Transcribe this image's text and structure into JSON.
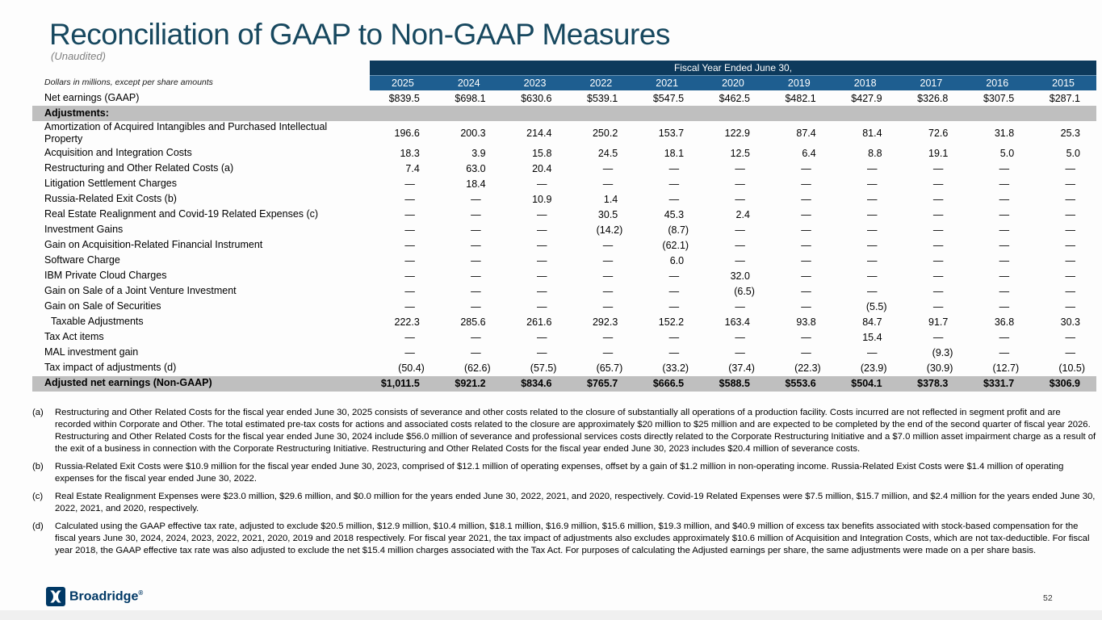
{
  "slide": {
    "title": "Reconciliation of GAAP to Non-GAAP Measures",
    "subtitle": "(Unaudited)",
    "units_note": "Dollars in millions, except per share amounts",
    "page_number": "52",
    "logo_text": "Broadridge",
    "logo_mark": "®"
  },
  "colors": {
    "title_text": "#17485f",
    "banner_navy": "#0d3a5c",
    "year_row_blue": "#1e5e90",
    "gray_band": "#bfbfbf",
    "logo_navy": "#003865"
  },
  "table": {
    "banner": "Fiscal Year Ended June 30,",
    "years": [
      "2025",
      "2024",
      "2023",
      "2022",
      "2021",
      "2020",
      "2019",
      "2018",
      "2017",
      "2016",
      "2015"
    ],
    "rows": [
      {
        "label": "Net earnings (GAAP)",
        "type": "data",
        "values": [
          "$839.5",
          "$698.1",
          "$630.6",
          "$539.1",
          "$547.5",
          "$462.5",
          "$482.1",
          "$427.9",
          "$326.8",
          "$307.5",
          "$287.1"
        ]
      },
      {
        "label": "Adjustments:",
        "type": "section"
      },
      {
        "label": "Amortization of Acquired Intangibles and Purchased Intellectual Property",
        "type": "data",
        "values": [
          "196.6",
          "200.3",
          "214.4",
          "250.2",
          "153.7",
          "122.9",
          "87.4",
          "81.4",
          "72.6",
          "31.8",
          "25.3"
        ]
      },
      {
        "label": "Acquisition and Integration Costs",
        "type": "data",
        "values": [
          "18.3",
          "3.9",
          "15.8",
          "24.5",
          "18.1",
          "12.5",
          "6.4",
          "8.8",
          "19.1",
          "5.0",
          "5.0"
        ]
      },
      {
        "label": "Restructuring and Other Related Costs (a)",
        "type": "data",
        "values": [
          "7.4",
          "63.0",
          "20.4",
          "—",
          "—",
          "—",
          "—",
          "—",
          "—",
          "—",
          "—"
        ]
      },
      {
        "label": "Litigation Settlement Charges",
        "type": "data",
        "values": [
          "—",
          "18.4",
          "—",
          "—",
          "—",
          "—",
          "—",
          "—",
          "—",
          "—",
          "—"
        ]
      },
      {
        "label": "Russia-Related Exit Costs (b)",
        "type": "data",
        "values": [
          "—",
          "—",
          "10.9",
          "1.4",
          "—",
          "—",
          "—",
          "—",
          "—",
          "—",
          "—"
        ]
      },
      {
        "label": "Real Estate Realignment and Covid-19 Related Expenses (c)",
        "type": "data",
        "values": [
          "—",
          "—",
          "—",
          "30.5",
          "45.3",
          "2.4",
          "—",
          "—",
          "—",
          "—",
          "—"
        ]
      },
      {
        "label": "Investment Gains",
        "type": "data",
        "values": [
          "—",
          "—",
          "—",
          "(14.2)",
          "(8.7)",
          "—",
          "—",
          "—",
          "—",
          "—",
          "—"
        ]
      },
      {
        "label": "Gain on Acquisition-Related Financial Instrument",
        "type": "data",
        "values": [
          "—",
          "—",
          "—",
          "—",
          "(62.1)",
          "—",
          "—",
          "—",
          "—",
          "—",
          "—"
        ]
      },
      {
        "label": "Software Charge",
        "type": "data",
        "values": [
          "—",
          "—",
          "—",
          "—",
          "6.0",
          "—",
          "—",
          "—",
          "—",
          "—",
          "—"
        ]
      },
      {
        "label": "IBM Private Cloud Charges",
        "type": "data",
        "values": [
          "—",
          "—",
          "—",
          "—",
          "—",
          "32.0",
          "—",
          "—",
          "—",
          "—",
          "—"
        ]
      },
      {
        "label": "Gain on Sale of a Joint Venture Investment",
        "type": "data",
        "values": [
          "—",
          "—",
          "—",
          "—",
          "—",
          "(6.5)",
          "—",
          "—",
          "—",
          "—",
          "—"
        ]
      },
      {
        "label": "Gain on Sale of Securities",
        "type": "data",
        "values": [
          "—",
          "—",
          "—",
          "—",
          "—",
          "—",
          "—",
          "(5.5)",
          "—",
          "—",
          "—"
        ]
      },
      {
        "label": "Taxable Adjustments",
        "type": "data",
        "indent": true,
        "values": [
          "222.3",
          "285.6",
          "261.6",
          "292.3",
          "152.2",
          "163.4",
          "93.8",
          "84.7",
          "91.7",
          "36.8",
          "30.3"
        ]
      },
      {
        "label": "Tax Act items",
        "type": "data",
        "values": [
          "—",
          "—",
          "—",
          "—",
          "—",
          "—",
          "—",
          "15.4",
          "—",
          "—",
          "—"
        ]
      },
      {
        "label": "MAL investment gain",
        "type": "data",
        "values": [
          "—",
          "—",
          "—",
          "—",
          "—",
          "—",
          "—",
          "—",
          "(9.3)",
          "—",
          "—"
        ]
      },
      {
        "label": "Tax impact of adjustments (d)",
        "type": "data",
        "values": [
          "(50.4)",
          "(62.6)",
          "(57.5)",
          "(65.7)",
          "(33.2)",
          "(37.4)",
          "(22.3)",
          "(23.9)",
          "(30.9)",
          "(12.7)",
          "(10.5)"
        ]
      },
      {
        "label": "Adjusted net earnings (Non-GAAP)",
        "type": "total",
        "values": [
          "$1,011.5",
          "$921.2",
          "$834.6",
          "$765.7",
          "$666.5",
          "$588.5",
          "$553.6",
          "$504.1",
          "$378.3",
          "$331.7",
          "$306.9"
        ]
      }
    ]
  },
  "footnotes": [
    {
      "marker": "(a)",
      "text": "Restructuring and Other Related Costs for the fiscal year ended June 30, 2025 consists of severance and other costs related to the closure of substantially all operations of a production facility. Costs incurred are not reflected in segment profit and are recorded within Corporate and Other. The total estimated pre-tax costs for actions and associated costs related to the closure are approximately $20 million to $25 million and are expected to be completed by the end of the second quarter of fiscal year 2026. Restructuring and Other Related Costs for the fiscal year ended June 30, 2024 include $56.0 million of severance and professional services costs directly related to the Corporate Restructuring Initiative and a $7.0 million asset impairment charge as a result of the exit of a business in connection with the Corporate Restructuring Initiative. Restructuring and Other Related Costs for the fiscal year ended June 30, 2023 includes $20.4 million of severance costs."
    },
    {
      "marker": "(b)",
      "text": "Russia-Related Exit Costs were $10.9 million for the fiscal year ended June 30, 2023, comprised of $12.1 million of operating expenses, offset by a gain of $1.2 million in non-operating income. Russia-Related Exist Costs were $1.4 million of operating expenses for the fiscal year ended June 30, 2022."
    },
    {
      "marker": "(c)",
      "text": "Real Estate Realignment Expenses were $23.0 million, $29.6 million, and $0.0 million  for the years ended June 30, 2022, 2021, and 2020, respectively. Covid-19 Related Expenses were $7.5 million, $15.7 million, and $2.4 million for the years ended June 30, 2022, 2021, and 2020, respectively."
    },
    {
      "marker": "(d)",
      "text": "Calculated using the GAAP effective tax rate, adjusted to exclude $20.5 million, $12.9 million, $10.4 million, $18.1 million, $16.9 million, $15.6 million, $19.3 million, and $40.9 million of excess tax benefits associated with stock-based compensation for the fiscal years June 30, 2024, 2024, 2023, 2022, 2021, 2020, 2019 and 2018 respectively. For fiscal year 2021, the tax impact of adjustments also excludes approximately $10.6 million of Acquisition and Integration Costs, which are not tax-deductible. For fiscal year 2018, the GAAP effective tax rate was also adjusted to exclude the net $15.4 million charges associated with the Tax Act. For purposes of calculating the Adjusted earnings per share, the same adjustments were made on a per share basis."
    }
  ]
}
